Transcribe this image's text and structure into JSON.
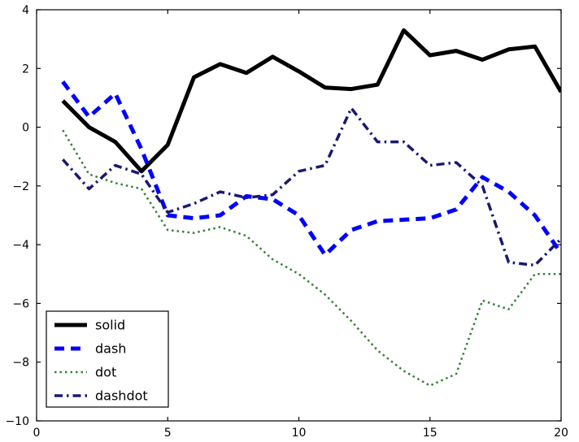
{
  "figure": {
    "background": "#ffffff",
    "frame_color": "#000000"
  },
  "chart_data": {
    "type": "line",
    "title": "",
    "xlabel": "",
    "ylabel": "",
    "xlim": [
      0,
      20
    ],
    "ylim": [
      -10,
      4
    ],
    "xticks": [
      0,
      5,
      10,
      15,
      20
    ],
    "yticks": [
      -10,
      -8,
      -6,
      -4,
      -2,
      0,
      2,
      4
    ],
    "grid": false,
    "legend_position": "lower left",
    "x": [
      1,
      2,
      3,
      4,
      5,
      6,
      7,
      8,
      9,
      10,
      11,
      12,
      13,
      14,
      15,
      16,
      17,
      18,
      19,
      20
    ],
    "series": [
      {
        "name": "solid",
        "color": "#000000",
        "style": "solid",
        "width": 5,
        "values": [
          0.9,
          0.0,
          -0.5,
          -1.5,
          -0.6,
          1.7,
          2.15,
          1.85,
          2.4,
          1.9,
          1.35,
          1.3,
          1.45,
          3.3,
          2.45,
          2.6,
          2.3,
          2.65,
          2.75,
          1.2
        ]
      },
      {
        "name": "dash",
        "color": "#0000ff",
        "style": "dash",
        "width": 5,
        "values": [
          1.55,
          0.35,
          1.15,
          -0.75,
          -3.0,
          -3.1,
          -3.0,
          -2.35,
          -2.45,
          -3.0,
          -4.35,
          -3.5,
          -3.2,
          -3.15,
          -3.1,
          -2.8,
          -1.7,
          -2.2,
          -3.0,
          -4.3
        ]
      },
      {
        "name": "dot",
        "color": "#338033",
        "style": "dot",
        "width": 2.5,
        "values": [
          -0.1,
          -1.6,
          -1.9,
          -2.1,
          -3.5,
          -3.6,
          -3.4,
          -3.7,
          -4.5,
          -5.0,
          -5.7,
          -6.6,
          -7.6,
          -8.3,
          -8.8,
          -8.4,
          -5.9,
          -6.2,
          -5.0,
          -5.0
        ]
      },
      {
        "name": "dashdot",
        "color": "#191970",
        "style": "dashdot",
        "width": 3.5,
        "values": [
          -1.1,
          -2.1,
          -1.3,
          -1.6,
          -2.9,
          -2.6,
          -2.2,
          -2.4,
          -2.3,
          -1.5,
          -1.3,
          0.65,
          -0.5,
          -0.5,
          -1.3,
          -1.2,
          -2.0,
          -4.6,
          -4.7,
          -3.8
        ]
      }
    ],
    "legend_labels": [
      "solid",
      "dash",
      "dot",
      "dashdot"
    ]
  }
}
